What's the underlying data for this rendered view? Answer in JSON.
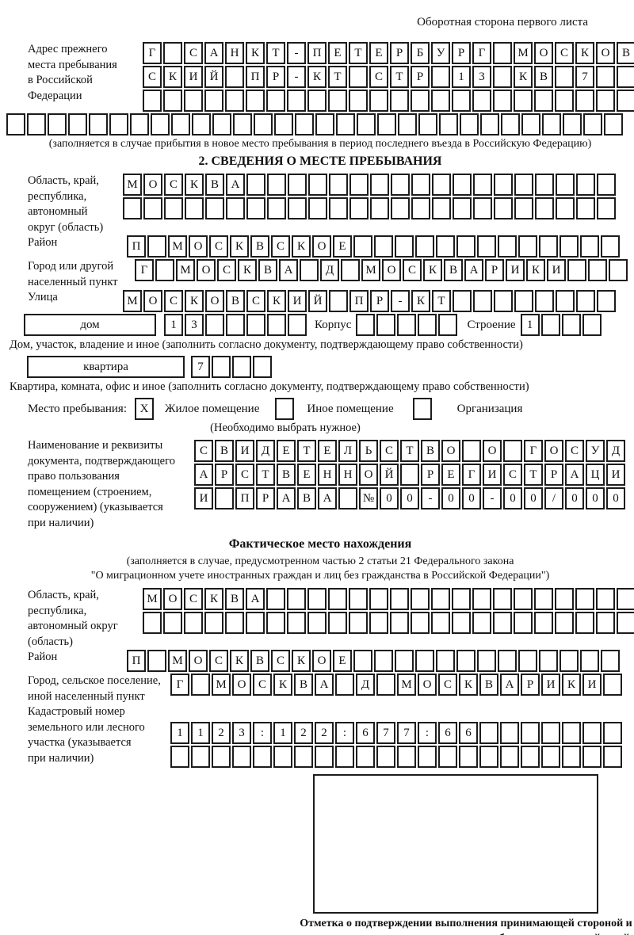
{
  "colors": {
    "border": "#1c1c1c",
    "text": "#111111",
    "background": "#ffffff"
  },
  "header": {
    "note": "Оборотная сторона первого листа"
  },
  "prev_address": {
    "label": "Адрес прежнего\nместа пребывания\nв Российской\nФедерации",
    "rows": [
      "Г САНКТ-ПЕТЕРБУРГ МОСКОВ",
      "СКИЙ ПР-КТ СТР 13 КВ 7  ",
      "                        ",
      "                              "
    ],
    "note": "(заполняется в случае прибытия в новое место пребывания в период последнего въезда в Российскую Федерацию)"
  },
  "section2": {
    "title": "2. СВЕДЕНИЯ О МЕСТЕ ПРЕБЫВАНИЯ",
    "region": {
      "label": "Область, край,\nреспублика,\nавтономный\nокруг (область)",
      "rows": [
        "МОСКВА                  ",
        "                        "
      ]
    },
    "district": {
      "label": "Район",
      "cells": "П МОСКВСКОЕ             "
    },
    "city": {
      "label": "Город или другой\nнаселенный пункт",
      "cells": "Г МОСКВА Д МОСКВАРИКИ   "
    },
    "street": {
      "label": "Улица",
      "cells": "МОСКОВСКИЙ ПР-КТ        "
    },
    "house": {
      "box_label": "дом",
      "cells1": "13     ",
      "corpus_label": "Корпус",
      "cells2": "     ",
      "stroenie_label": "Строение",
      "cells3": "1   ",
      "note": "Дом, участок, владение и иное (заполнить согласно документу, подтверждающему право собственности)"
    },
    "apartment": {
      "box_label": "квартира",
      "cells": "7   ",
      "note": "Квартира, комната, офис и иное (заполнить согласно документу, подтверждающему право собственности)"
    },
    "stay": {
      "label": "Место пребывания:",
      "options": [
        {
          "label": "Жилое помещение",
          "mark": "X"
        },
        {
          "label": "Иное помещение",
          "mark": " "
        },
        {
          "label": "Организация",
          "mark": " "
        }
      ],
      "note": "(Необходимо выбрать нужное)"
    },
    "document": {
      "label": "Наименование и реквизиты\nдокумента, подтверждающего\nправо пользования\nпомещением (строением,\nсооружением) (указывается\nпри наличии)",
      "rows": [
        "СВИДЕТЕЛЬСТВО О ГОСУД",
        "АРСТВЕННОЙ РЕГИСТРАЦИ",
        "И ПРАВА №00-00-00/000"
      ]
    }
  },
  "factual": {
    "title": "Фактическое место нахождения",
    "note1": "(заполняется в случае, предусмотренном частью 2 статьи 21 Федерального закона",
    "note2": "\"О миграционном учете иностранных граждан и лиц без гражданства в Российской Федерации\")",
    "region": {
      "label": "Область, край,\nреспублика,\nавтономный округ\n(область)",
      "rows": [
        "МОСКВА                  ",
        "                        "
      ]
    },
    "district": {
      "label": "Район",
      "cells": "П МОСКВСКОЕ             "
    },
    "city": {
      "label": "Город, сельское поселение,\nиной населенный пункт",
      "cells": "Г МОСКВА Д МОСКВАРИКИ "
    },
    "cadastre": {
      "label": "Кадастровый номер\nземельного или лесного\nучастка (указывается\nпри наличии)",
      "rows": [
        "1123:122:677:66       ",
        "                      "
      ]
    }
  },
  "stamp": {
    "caption": "Отметка о подтверждении выполнения принимающей стороной и иностранным гражданином или лицом без гражданства действий, необходимых для его постановки на учет по месту пребывания"
  }
}
